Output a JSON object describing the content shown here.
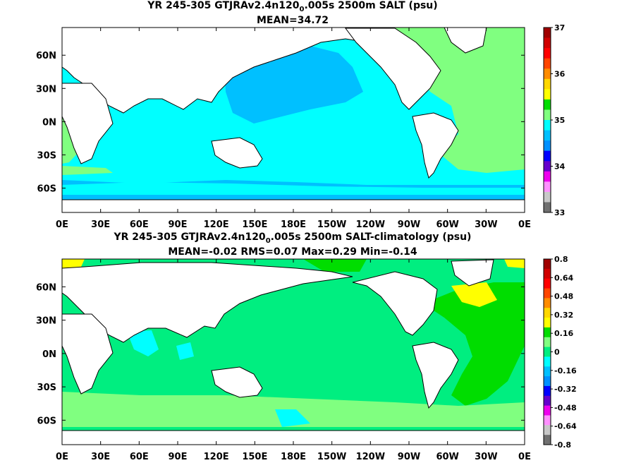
{
  "chart_data": [
    {
      "type": "heatmap",
      "title_prefix": "YR 245-305 GTJRAv2.4n120",
      "title_sub": "0",
      "title_suffix": ".005s 2500m SALT (psu)",
      "stats": "MEAN=34.72",
      "x_ticks": [
        "0E",
        "30E",
        "60E",
        "90E",
        "120E",
        "150E",
        "180E",
        "150W",
        "120W",
        "90W",
        "60W",
        "30W",
        "0E"
      ],
      "y_ticks": [
        "60N",
        "30N",
        "0N",
        "30S",
        "60S"
      ],
      "y_values": [
        60,
        30,
        0,
        -30,
        -60
      ],
      "xlim": [
        0,
        360
      ],
      "ylim": [
        -82,
        85
      ],
      "colorbar": {
        "labels": [
          "37",
          "36",
          "35",
          "34",
          "33"
        ],
        "colors": [
          "#a00000",
          "#d00000",
          "#ff0000",
          "#ff4500",
          "#ff8c00",
          "#ffd700",
          "#ffff00",
          "#00dd00",
          "#80ff80",
          "#00ffff",
          "#00c0ff",
          "#0090ff",
          "#0000ff",
          "#6600cc",
          "#ee00ee",
          "#ff90ff",
          "#c8c8c8",
          "#707070"
        ]
      },
      "regions": {
        "background": "#00ffff",
        "north_pacific": "#00c0ff",
        "atlantic": "#80ff80",
        "southern_ocean": "#00c0ff",
        "southern_band": "#00ffff",
        "indian_west": "#80ff80"
      }
    },
    {
      "type": "heatmap",
      "title_prefix": "YR 245-305 GTJRAv2.4n120",
      "title_sub": "0",
      "title_suffix": ".005s 2500m SALT-climatology (psu)",
      "stats": "MEAN=-0.02   RMS=0.07   Max=0.29   Min=-0.14",
      "x_ticks": [
        "0E",
        "30E",
        "60E",
        "90E",
        "120E",
        "150E",
        "180E",
        "150W",
        "120W",
        "90W",
        "60W",
        "30W",
        "0E"
      ],
      "y_ticks": [
        "60N",
        "30N",
        "0N",
        "30S",
        "60S"
      ],
      "y_values": [
        60,
        30,
        0,
        -30,
        -60
      ],
      "xlim": [
        0,
        360
      ],
      "ylim": [
        -82,
        85
      ],
      "colorbar": {
        "labels": [
          "0.8",
          "0.64",
          "0.48",
          "0.32",
          "0.16",
          "0",
          "-0.16",
          "-0.32",
          "-0.48",
          "-0.64",
          "-0.8"
        ],
        "colors": [
          "#a00000",
          "#d00000",
          "#ff0000",
          "#ff4500",
          "#ff8c00",
          "#ffd700",
          "#ffff00",
          "#00dd00",
          "#80ff80",
          "#00ee80",
          "#00ffff",
          "#00c0ff",
          "#0090ff",
          "#0000ff",
          "#6600cc",
          "#ee00ee",
          "#ff90ff",
          "#c8c8c8",
          "#707070"
        ]
      },
      "regions": {
        "background": "#00ee80",
        "north_atlantic": "#00dd00",
        "atlantic_high": "#ffff00",
        "southern_band": "#80ff80",
        "indian_cyan": "#00ffff"
      }
    }
  ]
}
